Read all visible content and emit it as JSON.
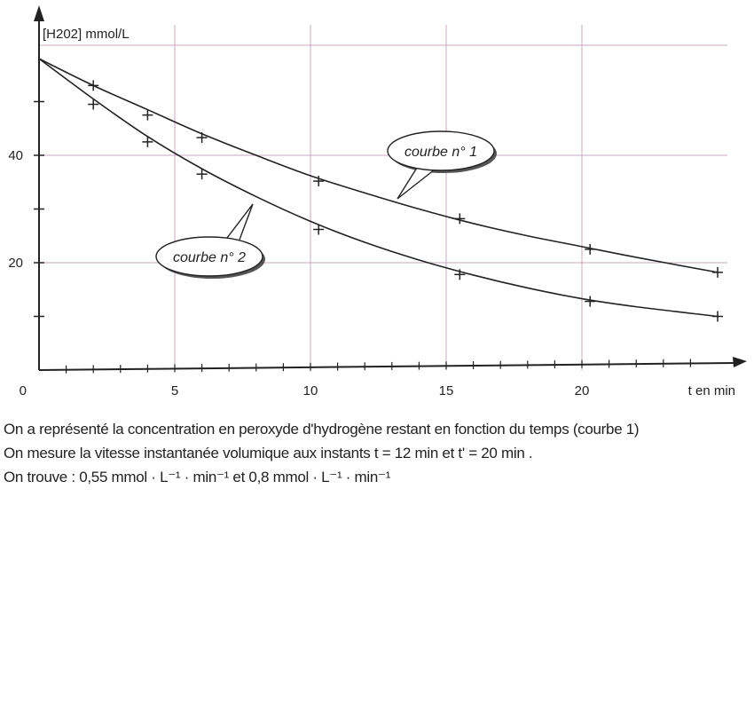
{
  "chart_data": {
    "type": "line",
    "ylabel": "[H202] mmol/L",
    "xlabel": "t en min",
    "origin_label": "0",
    "xlim": [
      0,
      25
    ],
    "ylim": [
      0,
      62
    ],
    "x_ticks": [
      5,
      10,
      15,
      20
    ],
    "y_ticks": [
      20,
      40
    ],
    "grid": true,
    "series": [
      {
        "name": "courbe n° 1",
        "curve": [
          [
            0,
            58
          ],
          [
            2,
            53
          ],
          [
            4,
            48.5
          ],
          [
            6,
            44
          ],
          [
            8,
            40
          ],
          [
            10,
            36.2
          ],
          [
            12,
            33
          ],
          [
            14,
            30
          ],
          [
            16,
            27.3
          ],
          [
            18,
            25
          ],
          [
            20,
            23
          ],
          [
            22,
            21
          ],
          [
            25,
            18.2
          ]
        ],
        "markers": [
          [
            2,
            53
          ],
          [
            4,
            47.5
          ],
          [
            6,
            43.3
          ],
          [
            10.3,
            35.2
          ],
          [
            15.5,
            28.2
          ],
          [
            20.3,
            22.5
          ],
          [
            25,
            18.2
          ]
        ]
      },
      {
        "name": "courbe n° 2",
        "curve": [
          [
            0,
            58
          ],
          [
            2,
            50.5
          ],
          [
            4,
            43.5
          ],
          [
            6,
            37.5
          ],
          [
            8,
            32.3
          ],
          [
            10,
            27.7
          ],
          [
            12,
            23.8
          ],
          [
            14,
            20.5
          ],
          [
            16,
            17.7
          ],
          [
            18,
            15.3
          ],
          [
            20,
            13.3
          ],
          [
            22,
            11.8
          ],
          [
            25,
            10
          ]
        ],
        "markers": [
          [
            2,
            49.5
          ],
          [
            4,
            42.5
          ],
          [
            6,
            36.5
          ],
          [
            10.3,
            26.2
          ],
          [
            15.5,
            17.8
          ],
          [
            20.3,
            12.8
          ],
          [
            25,
            10
          ]
        ]
      }
    ]
  },
  "text": {
    "line1": "On a représenté la concentration en peroxyde d'hydrogène restant en fonction du temps (courbe 1)",
    "line2": "On mesure la vitesse instantanée volumique aux instants  t  =  12 min  et t'  =  20 min .",
    "line3": "On trouve : 0,55 mmol · L⁻¹ · min⁻¹  et  0,8 mmol · L⁻¹ · min⁻¹"
  }
}
